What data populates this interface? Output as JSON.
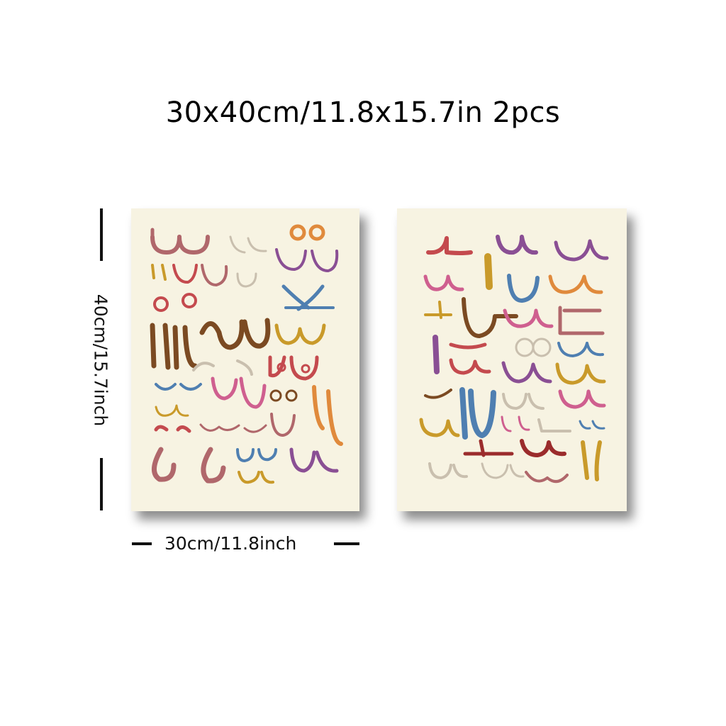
{
  "title": "30x40cm/11.8x15.7in 2pcs",
  "dimensions": {
    "width_label": "30cm/11.8inch",
    "height_label": "40cm/15.7inch"
  },
  "posters": [
    {
      "name": "left",
      "background": "#f7f3e2"
    },
    {
      "name": "right",
      "background": "#f7f3e2"
    }
  ],
  "palette": [
    "#b0676b",
    "#c44a4e",
    "#c99a2a",
    "#7b4a22",
    "#4f7fb1",
    "#8a4f94",
    "#cf5f8f",
    "#e08a3c",
    "#9b2c2c",
    "#c9bfae"
  ]
}
